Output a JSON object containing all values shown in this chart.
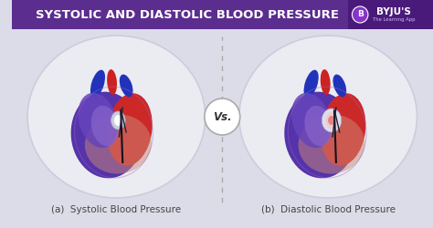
{
  "title": "SYSTOLIC AND DIASTOLIC BLOOD PRESSURE",
  "title_bg": "#5b2d8e",
  "title_color": "#ffffff",
  "bg_color": "#dcdce8",
  "oval_color": "#ebebf2",
  "oval_edge": "#ccccdd",
  "label_a": "(a)  Systolic Blood Pressure",
  "label_b": "(b)  Diastolic Blood Pressure",
  "vs_text": "Vs.",
  "vs_circle_color": "#ffffff",
  "vs_circle_edge": "#aaaaaa",
  "label_color": "#444444",
  "dashed_line_color": "#aaaaaa",
  "byju_bg": "#4a1a7a"
}
